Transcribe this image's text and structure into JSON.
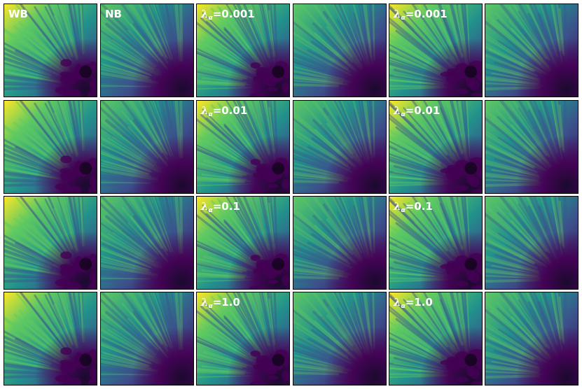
{
  "columns": [
    "WB",
    "NB",
    "",
    "",
    "",
    ""
  ],
  "rows": [
    {
      "labels": [
        "WB",
        "NB",
        "λα=0.001",
        "",
        "λα=0.001",
        ""
      ]
    },
    {
      "labels": [
        "",
        "",
        "λα=0.01",
        "",
        "λα=0.01",
        ""
      ]
    },
    {
      "labels": [
        "",
        "",
        "λα=0.1",
        "",
        "λα=0.1",
        ""
      ]
    },
    {
      "labels": [
        "",
        "",
        "λα=1.0",
        "",
        "λα=1.0",
        ""
      ]
    }
  ],
  "panel_labels": {
    "r0c0": "WB",
    "r0c1": "NB",
    "r0c2": {
      "symbol": "λ",
      "sub": "α",
      "value": "=0.001"
    },
    "r0c4": {
      "symbol": "λ",
      "sub": "α",
      "value": "=0.001"
    },
    "r1c2": {
      "symbol": "λ",
      "sub": "α",
      "value": "=0.01"
    },
    "r1c4": {
      "symbol": "λ",
      "sub": "α",
      "value": "=0.01"
    },
    "r2c2": {
      "symbol": "λ",
      "sub": "α",
      "value": "=0.1"
    },
    "r2c4": {
      "symbol": "λ",
      "sub": "α",
      "value": "=0.1"
    },
    "r3c2": {
      "symbol": "λ",
      "sub": "α",
      "value": "=1.0"
    },
    "r3c4": {
      "symbol": "λ",
      "sub": "α",
      "value": "=1.0"
    }
  },
  "colormap": [
    "#440154",
    "#3b528b",
    "#21918c",
    "#5ec962",
    "#fde725"
  ],
  "label_color": "#ffffff"
}
